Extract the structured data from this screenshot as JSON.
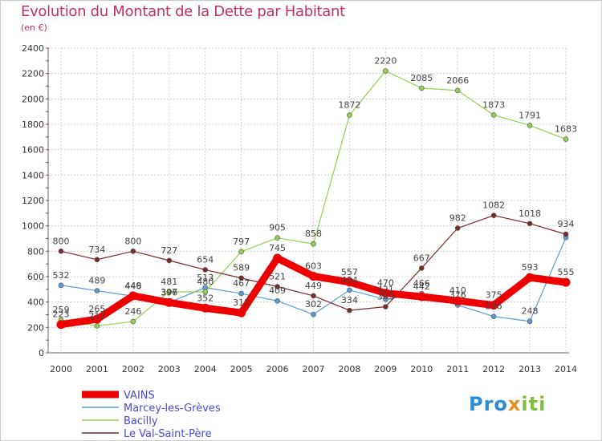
{
  "header": {
    "title": "Evolution du Montant de la Dette par Habitant",
    "subtitle": "(en €)"
  },
  "logo": {
    "p1": "Pro",
    "p2": "x",
    "p3": "iti"
  },
  "chart_data": {
    "type": "line",
    "title": "Evolution du Montant de la Dette par Habitant",
    "subtitle": "(en €)",
    "xlabel": "",
    "ylabel": "",
    "ylim": [
      0,
      2400
    ],
    "yticks": [
      0,
      200,
      400,
      600,
      800,
      1000,
      1200,
      1400,
      1600,
      1800,
      2000,
      2200,
      2400
    ],
    "grid": true,
    "legend": "bottom-left",
    "categories": [
      "2000",
      "2001",
      "2002",
      "2003",
      "2004",
      "2005",
      "2006",
      "2007",
      "2008",
      "2009",
      "2010",
      "2011",
      "2012",
      "2013",
      "2014"
    ],
    "series": [
      {
        "name": "Marcey-les-Grèves",
        "color": "#5b9bd5",
        "width": 1.2,
        "values": [
          532,
          489,
          446,
          397,
          513,
          467,
          409,
          302,
          494,
          421,
          466,
          376,
          286,
          248,
          908
        ],
        "labels": [
          "532",
          "489",
          "446",
          "397",
          "513",
          "467",
          "409",
          "302",
          "494",
          "421",
          "466",
          "376",
          "286",
          "248",
          ""
        ]
      },
      {
        "name": "Bacilly",
        "color": "#92d050",
        "width": 1.2,
        "values": [
          259,
          212,
          246,
          481,
          480,
          797,
          905,
          858,
          1872,
          2220,
          2085,
          2066,
          1873,
          1791,
          1683
        ],
        "labels": [
          "259",
          "212",
          "246",
          "481",
          "480",
          "797",
          "905",
          "858",
          "1872",
          "2220",
          "2085",
          "2066",
          "1873",
          "1791",
          "1683"
        ]
      },
      {
        "name": "Le Val-Saint-Père",
        "color": "#7b2a2a",
        "width": 1.2,
        "values": [
          800,
          734,
          800,
          727,
          654,
          589,
          521,
          449,
          334,
          363,
          667,
          982,
          1082,
          1018,
          934
        ],
        "labels": [
          "800",
          "734",
          "800",
          "727",
          "654",
          "589",
          "521",
          "449",
          "334",
          "363",
          "667",
          "982",
          "1082",
          "1018",
          "934"
        ]
      },
      {
        "name": "VAINS",
        "color": "#ee0000",
        "width": 9,
        "values": [
          223,
          265,
          449,
          396,
          352,
          315,
          745,
          603,
          557,
          470,
          442,
          410,
          375,
          593,
          555
        ],
        "labels": [
          "223",
          "265",
          "449",
          "396",
          "352",
          "315",
          "745",
          "603",
          "557",
          "470",
          "442",
          "410",
          "375",
          "593",
          "555"
        ]
      }
    ],
    "legend_order": [
      "VAINS",
      "Marcey-les-Grèves",
      "Bacilly",
      "Le Val-Saint-Père"
    ]
  }
}
